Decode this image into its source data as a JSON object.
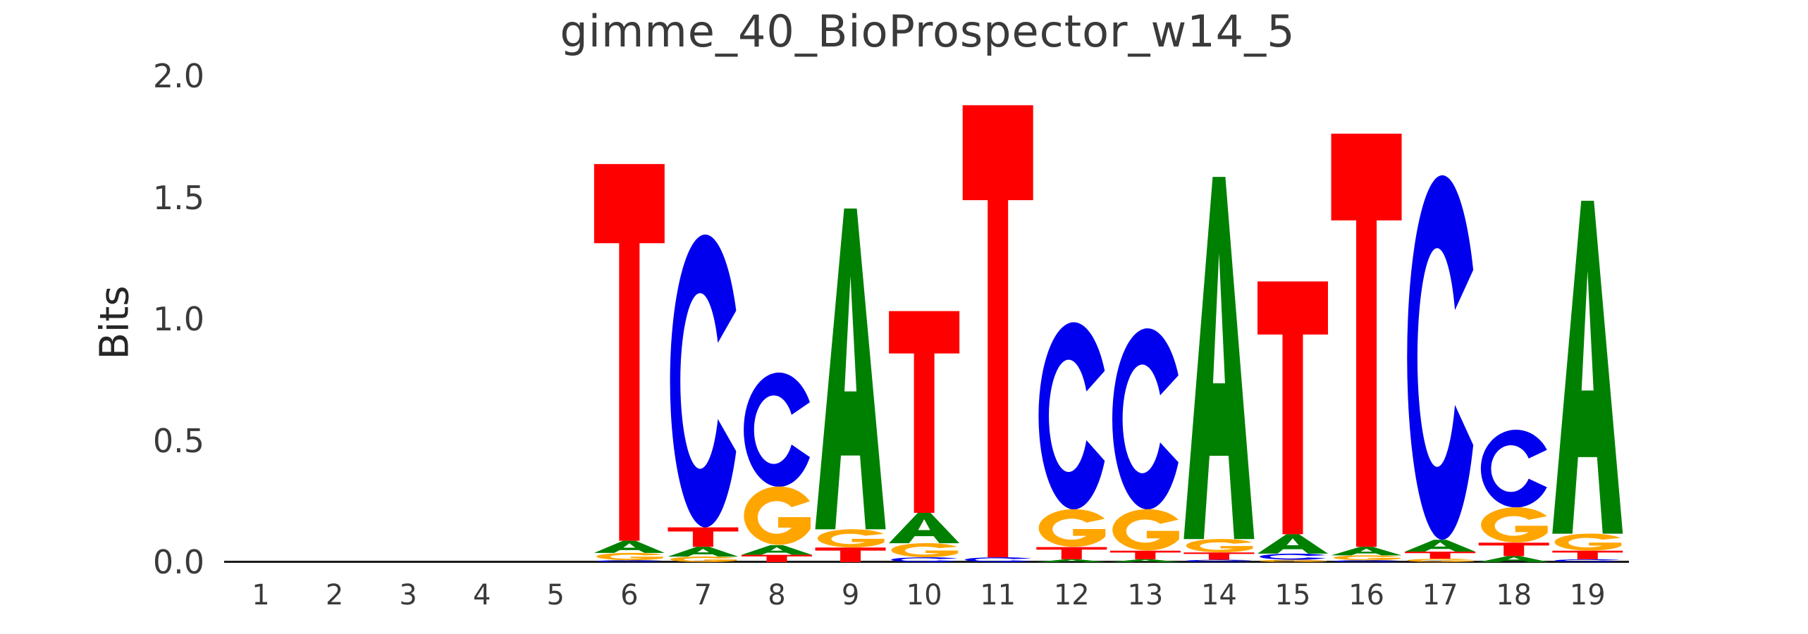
{
  "title": "gimme_40_BioProspector_w14_5",
  "y_axis": {
    "label": "Bits",
    "ticks": [
      "0.0",
      "0.5",
      "1.0",
      "1.5",
      "2.0"
    ],
    "range": [
      0.0,
      2.0
    ]
  },
  "x_axis": {
    "ticks": [
      "1",
      "2",
      "3",
      "4",
      "5",
      "6",
      "7",
      "8",
      "9",
      "10",
      "11",
      "12",
      "13",
      "14",
      "15",
      "16",
      "17",
      "18",
      "19"
    ]
  },
  "chart_data": {
    "type": "sequence_logo",
    "title": "gimme_40_BioProspector_w14_5",
    "ylabel": "Bits",
    "ylim": [
      0.0,
      2.0
    ],
    "xlabel": "",
    "grid": false,
    "units": "bits",
    "stack_order": "top-to-bottom",
    "base_colors": {
      "A": "#008000",
      "C": "#0000EE",
      "G": "#FFA500",
      "T": "#FF0000"
    },
    "axis_color": "#1a1a1a",
    "positions": [
      {
        "position": 1,
        "letters": []
      },
      {
        "position": 2,
        "letters": []
      },
      {
        "position": 3,
        "letters": []
      },
      {
        "position": 4,
        "letters": []
      },
      {
        "position": 5,
        "letters": []
      },
      {
        "position": 6,
        "letters": [
          {
            "base": "T",
            "bits": 1.55
          },
          {
            "base": "A",
            "bits": 0.05
          },
          {
            "base": "G",
            "bits": 0.03
          },
          {
            "base": "C",
            "bits": 0.008
          }
        ]
      },
      {
        "position": 7,
        "letters": [
          {
            "base": "C",
            "bits": 1.205
          },
          {
            "base": "T",
            "bits": 0.08
          },
          {
            "base": "A",
            "bits": 0.04
          },
          {
            "base": "G",
            "bits": 0.023
          }
        ]
      },
      {
        "position": 8,
        "letters": [
          {
            "base": "C",
            "bits": 0.47
          },
          {
            "base": "G",
            "bits": 0.24
          },
          {
            "base": "A",
            "bits": 0.04
          },
          {
            "base": "T",
            "bits": 0.03
          }
        ]
      },
      {
        "position": 9,
        "letters": [
          {
            "base": "A",
            "bits": 1.32
          },
          {
            "base": "G",
            "bits": 0.075
          },
          {
            "base": "T",
            "bits": 0.06
          }
        ]
      },
      {
        "position": 10,
        "letters": [
          {
            "base": "T",
            "bits": 0.83
          },
          {
            "base": "A",
            "bits": 0.125
          },
          {
            "base": "G",
            "bits": 0.058
          },
          {
            "base": "C",
            "bits": 0.02
          }
        ]
      },
      {
        "position": 11,
        "letters": [
          {
            "base": "T",
            "bits": 1.86
          },
          {
            "base": "C",
            "bits": 0.02
          }
        ]
      },
      {
        "position": 12,
        "letters": [
          {
            "base": "C",
            "bits": 0.77
          },
          {
            "base": "G",
            "bits": 0.155
          },
          {
            "base": "T",
            "bits": 0.05
          },
          {
            "base": "A",
            "bits": 0.012
          }
        ]
      },
      {
        "position": 13,
        "letters": [
          {
            "base": "C",
            "bits": 0.745
          },
          {
            "base": "G",
            "bits": 0.17
          },
          {
            "base": "T",
            "bits": 0.035
          },
          {
            "base": "A",
            "bits": 0.012
          }
        ]
      },
      {
        "position": 14,
        "letters": [
          {
            "base": "A",
            "bits": 1.49
          },
          {
            "base": "G",
            "bits": 0.055
          },
          {
            "base": "T",
            "bits": 0.03
          },
          {
            "base": "C",
            "bits": 0.01
          }
        ]
      },
      {
        "position": 15,
        "letters": [
          {
            "base": "T",
            "bits": 1.04
          },
          {
            "base": "A",
            "bits": 0.08
          },
          {
            "base": "C",
            "bits": 0.025
          },
          {
            "base": "G",
            "bits": 0.01
          }
        ]
      },
      {
        "position": 16,
        "letters": [
          {
            "base": "T",
            "bits": 1.7
          },
          {
            "base": "A",
            "bits": 0.035
          },
          {
            "base": "G",
            "bits": 0.02
          },
          {
            "base": "C",
            "bits": 0.008
          }
        ]
      },
      {
        "position": 17,
        "letters": [
          {
            "base": "C",
            "bits": 1.5
          },
          {
            "base": "A",
            "bits": 0.049
          },
          {
            "base": "T",
            "bits": 0.029
          },
          {
            "base": "G",
            "bits": 0.014
          }
        ]
      },
      {
        "position": 18,
        "letters": [
          {
            "base": "C",
            "bits": 0.32
          },
          {
            "base": "G",
            "bits": 0.145
          },
          {
            "base": "T",
            "bits": 0.055
          },
          {
            "base": "A",
            "bits": 0.025
          }
        ]
      },
      {
        "position": 19,
        "letters": [
          {
            "base": "A",
            "bits": 1.37
          },
          {
            "base": "G",
            "bits": 0.07
          },
          {
            "base": "T",
            "bits": 0.035
          },
          {
            "base": "C",
            "bits": 0.012
          }
        ]
      }
    ]
  }
}
